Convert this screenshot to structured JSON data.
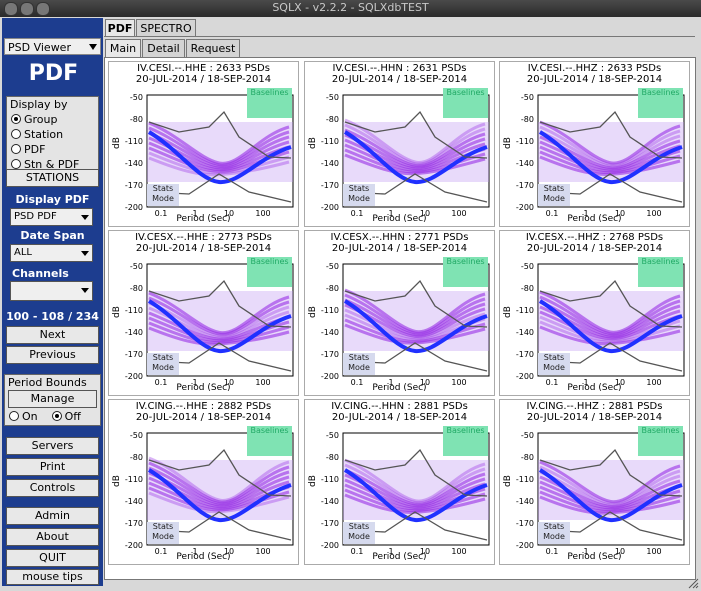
{
  "window": {
    "title": "SQLX - v2.2.2 - SQLXdbTEST"
  },
  "sidebar": {
    "viewer_select": "PSD Viewer",
    "mode_title": "PDF",
    "display_by": {
      "label": "Display by",
      "options": [
        "Group",
        "Station",
        "PDF",
        "Stn & PDF"
      ],
      "selected": "Group"
    },
    "stations_button": "STATIONS",
    "display_pdf_label": "Display PDF",
    "display_pdf_value": "PSD PDF",
    "date_span_label": "Date Span",
    "date_span_value": "ALL",
    "channels_label": "Channels",
    "channels_value": "",
    "range_text": "100 - 108 / 234",
    "next_button": "Next",
    "previous_button": "Previous",
    "period_bounds": {
      "label": "Period Bounds",
      "manage_button": "Manage",
      "on_label": "On",
      "off_label": "Off",
      "selected": "Off"
    },
    "servers_button": "Servers",
    "print_button": "Print",
    "controls_button": "Controls",
    "admin_button": "Admin",
    "about_button": "About",
    "quit_button": "QUIT",
    "mouse_tips_button": "mouse tips"
  },
  "tabs_top": [
    "PDF",
    "SPECTRO"
  ],
  "tabs_sub": [
    "Main",
    "Detail",
    "Request"
  ],
  "plots": [
    {
      "title": "IV.CESI.--.HHE : 2633 PSDs",
      "dates": "20-JUL-2014 / 18-SEP-2014",
      "yticks": [
        "-50",
        "-80",
        "-110",
        "-140",
        "-170",
        "-200"
      ]
    },
    {
      "title": "IV.CESI.--.HHN : 2631 PSDs",
      "dates": "20-JUL-2014 / 18-SEP-2014",
      "yticks": [
        "-50",
        "-80",
        "-110",
        "-140",
        "-170",
        "-200"
      ]
    },
    {
      "title": "IV.CESI.--.HHZ : 2633 PSDs",
      "dates": "20-JUL-2014 / 18-SEP-2014",
      "yticks": [
        "-50",
        "-80",
        "-110",
        "-140",
        "-170",
        "-200"
      ]
    },
    {
      "title": "IV.CESX.--.HHE : 2773 PSDs",
      "dates": "20-JUL-2014 / 18-SEP-2014",
      "yticks": [
        "-50",
        "-80",
        "-110",
        "-140",
        "-170",
        "-200"
      ]
    },
    {
      "title": "IV.CESX.--.HHN : 2771 PSDs",
      "dates": "20-JUL-2014 / 18-SEP-2014",
      "yticks": [
        "-50",
        "-80",
        "-110",
        "-140",
        "-170",
        "-200"
      ]
    },
    {
      "title": "IV.CESX.--.HHZ : 2768 PSDs",
      "dates": "20-JUL-2014 / 18-SEP-2014",
      "yticks": [
        "-50",
        "-80",
        "-110",
        "-140",
        "-170",
        "-200"
      ]
    },
    {
      "title": "IV.CING.--.HHE : 2882 PSDs",
      "dates": "20-JUL-2014 / 18-SEP-2014",
      "yticks": [
        "-50",
        "-80",
        "-110",
        "-140",
        "-170",
        "-200"
      ]
    },
    {
      "title": "IV.CING.--.HHN : 2881 PSDs",
      "dates": "20-JUL-2014 / 18-SEP-2014",
      "yticks": [
        "-50",
        "-80",
        "-110",
        "-140",
        "-170",
        "-200"
      ]
    },
    {
      "title": "IV.CING.--.HHZ : 2881 PSDs",
      "dates": "20-JUL-2014 / 18-SEP-2014",
      "yticks": [
        "-50",
        "-80",
        "-110",
        "-140",
        "-170",
        "-200"
      ]
    }
  ],
  "plot_common": {
    "ylabel": "dB",
    "xlabel": "Period (Sec)",
    "xticks": [
      "0.1",
      "1",
      "10",
      "100"
    ],
    "baselines_label": "Baselines",
    "stats_label": "Stats",
    "mode_label": "Mode"
  },
  "colors": {
    "sidebar": "#1d3d8f",
    "pdf_purple": "#8a2be2",
    "baseline_box": "#7fe3b3"
  }
}
